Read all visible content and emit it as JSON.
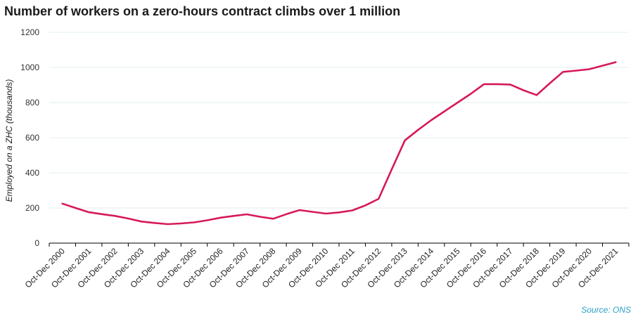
{
  "chart_data": {
    "type": "line",
    "title": "Number of workers on a zero-hours contract climbs over 1 million",
    "ylabel": "Employed  on a ZHC  (thousands)",
    "xlabel": "",
    "ylim": [
      0,
      1200
    ],
    "yticks": [
      0,
      200,
      400,
      600,
      800,
      1000,
      1200
    ],
    "grid": true,
    "categories": [
      "Oct-Dec 2000",
      "Oct-Dec 2001",
      "Oct-Dec 2002",
      "Oct-Dec 2003",
      "Oct-Dec 2004",
      "Oct-Dec 2005",
      "Oct-Dec 2006",
      "Oct-Dec 2007",
      "Oct-Dec 2008",
      "Oct-Dec 2009",
      "Oct-Dec 2010",
      "Oct-Dec 2011",
      "Oct-Dec 2012",
      "Oct-Dec 2013",
      "Oct-Dec 2014",
      "Oct-Dec 2015",
      "Oct-Dec 2016",
      "Oct-Dec 2017",
      "Oct-Dec 2018",
      "Oct-Dec 2019",
      "Oct-Dec 2020",
      "Oct-Dec 2021"
    ],
    "x_mid_half_years": 2,
    "series": [
      {
        "color": "#d6195b",
        "x": [
          0,
          0.5,
          1,
          1.5,
          2,
          2.5,
          3,
          3.5,
          4,
          4.5,
          5,
          5.5,
          6,
          6.5,
          7,
          7.5,
          8,
          8.5,
          9,
          9.5,
          10,
          10.5,
          11,
          11.5,
          12,
          12.5,
          13,
          13.5,
          14,
          14.5,
          15,
          15.5,
          16,
          16.5,
          17,
          17.5,
          18,
          18.5,
          19,
          19.5,
          20,
          20.5,
          21
        ],
        "values": [
          225,
          200,
          176,
          165,
          155,
          140,
          123,
          115,
          108,
          112,
          118,
          130,
          145,
          155,
          164,
          150,
          139,
          165,
          188,
          178,
          168,
          175,
          186,
          215,
          252,
          420,
          585,
          645,
          700,
          750,
          800,
          850,
          905,
          905,
          903,
          870,
          843,
          910,
          975,
          982,
          990,
          1010,
          1030
        ]
      }
    ]
  },
  "source": "Source:  ONS",
  "colors": {
    "line": "#d6195b",
    "grid": "#e3eef1",
    "axis": "#000000",
    "source": "#2aa0c8"
  }
}
